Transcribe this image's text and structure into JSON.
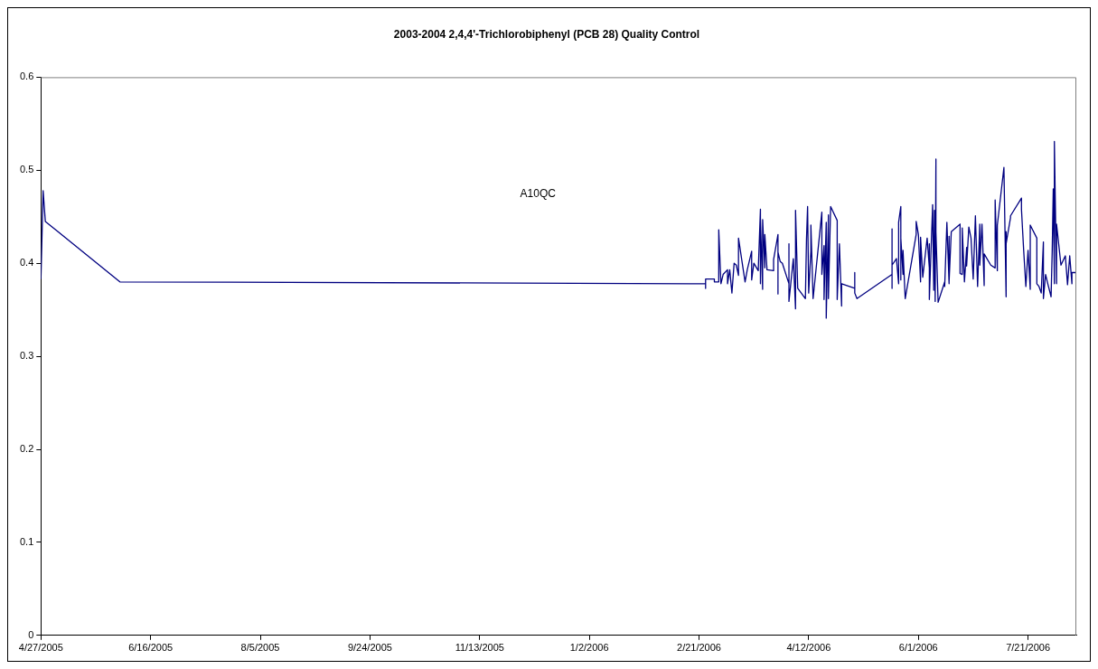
{
  "chart_data": {
    "type": "line",
    "title": "2003-2004 2,4,4'-Trichlorobiphenyl (PCB 28) Quality Control",
    "annotations": [
      "A10QC"
    ],
    "x": [
      "2005-04-27",
      "2005-04-28",
      "2005-04-29",
      "2005-06-02",
      "2006-02-24",
      "2006-02-24",
      "2006-02-24",
      "2006-02-28",
      "2006-02-28",
      "2006-03-02",
      "2006-03-02",
      "2006-03-03",
      "2006-03-04",
      "2006-03-06",
      "2006-03-06",
      "2006-03-07",
      "2006-03-08",
      "2006-03-09",
      "2006-03-10",
      "2006-03-11",
      "2006-03-11",
      "2006-03-14",
      "2006-03-15",
      "2006-03-17",
      "2006-03-17",
      "2006-03-18",
      "2006-03-20",
      "2006-03-21",
      "2006-03-21",
      "2006-03-21",
      "2006-03-22",
      "2006-03-22",
      "2006-03-23",
      "2006-03-23",
      "2006-03-24",
      "2006-03-27",
      "2006-03-27",
      "2006-03-29",
      "2006-03-29",
      "2006-03-29",
      "2006-03-29",
      "2006-03-30",
      "2006-03-31",
      "2006-04-03",
      "2006-04-03",
      "2006-04-03",
      "2006-04-05",
      "2006-04-06",
      "2006-04-06",
      "2006-04-07",
      "2006-04-10T12:00",
      "2006-04-11",
      "2006-04-11T12:00",
      "2006-04-12",
      "2006-04-13",
      "2006-04-13",
      "2006-04-14",
      "2006-04-18",
      "2006-04-18",
      "2006-04-19",
      "2006-04-19",
      "2006-04-20",
      "2006-04-20",
      "2006-04-21",
      "2006-04-21",
      "2006-04-22",
      "2006-04-25",
      "2006-04-25",
      "2006-04-26",
      "2006-04-27",
      "2006-04-27",
      "2006-05-03",
      "2006-05-03",
      "2006-05-03",
      "2006-05-04",
      "2006-05-20",
      "2006-05-20",
      "2006-05-20",
      "2006-05-20",
      "2006-05-22",
      "2006-05-23",
      "2006-05-23",
      "2006-05-24",
      "2006-05-24",
      "2006-05-24",
      "2006-05-25",
      "2006-05-25",
      "2006-05-26",
      "2006-05-31",
      "2006-05-31",
      "2006-06-01",
      "2006-06-02",
      "2006-06-02",
      "2006-06-03",
      "2006-06-05",
      "2006-06-06",
      "2006-06-06",
      "2006-06-06",
      "2006-06-07T12:00",
      "2006-06-08",
      "2006-06-08T08:00",
      "2006-06-08T16:00",
      "2006-06-09",
      "2006-06-09",
      "2006-06-10",
      "2006-06-13",
      "2006-06-13",
      "2006-06-14",
      "2006-06-15",
      "2006-06-15",
      "2006-06-15",
      "2006-06-16",
      "2006-06-20",
      "2006-06-20",
      "2006-06-21",
      "2006-06-21",
      "2006-06-22",
      "2006-06-23",
      "2006-06-23",
      "2006-06-24",
      "2006-06-25",
      "2006-06-26",
      "2006-06-27",
      "2006-06-28",
      "2006-06-29",
      "2006-06-29",
      "2006-06-30",
      "2006-07-01",
      "2006-07-01",
      "2006-07-04",
      "2006-07-06",
      "2006-07-06",
      "2006-07-07",
      "2006-07-07",
      "2006-07-10",
      "2006-07-11",
      "2006-07-11",
      "2006-07-11",
      "2006-07-13",
      "2006-07-13",
      "2006-07-18",
      "2006-07-18",
      "2006-07-19",
      "2006-07-20",
      "2006-07-21",
      "2006-07-22",
      "2006-07-22",
      "2006-07-25",
      "2006-07-25",
      "2006-07-26",
      "2006-07-27",
      "2006-07-28",
      "2006-07-28",
      "2006-07-29",
      "2006-07-30",
      "2006-07-31T12:00",
      "2006-08-01",
      "2006-08-01T12:00",
      "2006-08-02",
      "2006-08-02",
      "2006-08-03",
      "2006-08-03",
      "2006-08-05",
      "2006-08-07",
      "2006-08-08",
      "2006-08-09",
      "2006-08-10",
      "2006-08-10",
      "2006-08-12"
    ],
    "series": [
      {
        "color": "#000080",
        "values": [
          0.383,
          0.478,
          0.445,
          0.38,
          0.378,
          0.373,
          0.383,
          0.383,
          0.38,
          0.38,
          0.436,
          0.378,
          0.388,
          0.393,
          0.378,
          0.393,
          0.368,
          0.4,
          0.398,
          0.387,
          0.427,
          0.38,
          0.393,
          0.413,
          0.382,
          0.4,
          0.392,
          0.458,
          0.378,
          0.448,
          0.372,
          0.447,
          0.395,
          0.431,
          0.393,
          0.392,
          0.404,
          0.431,
          0.4,
          0.367,
          0.412,
          0.402,
          0.4,
          0.378,
          0.421,
          0.359,
          0.405,
          0.351,
          0.457,
          0.373,
          0.362,
          0.426,
          0.461,
          0.368,
          0.413,
          0.441,
          0.362,
          0.455,
          0.388,
          0.419,
          0.361,
          0.444,
          0.341,
          0.452,
          0.362,
          0.461,
          0.446,
          0.361,
          0.421,
          0.354,
          0.378,
          0.373,
          0.39,
          0.368,
          0.362,
          0.388,
          0.437,
          0.373,
          0.398,
          0.405,
          0.378,
          0.444,
          0.461,
          0.382,
          0.427,
          0.388,
          0.414,
          0.362,
          0.431,
          0.445,
          0.431,
          0.38,
          0.428,
          0.385,
          0.427,
          0.395,
          0.421,
          0.361,
          0.463,
          0.371,
          0.457,
          0.359,
          0.512,
          0.434,
          0.358,
          0.38,
          0.375,
          0.444,
          0.378,
          0.429,
          0.38,
          0.434,
          0.442,
          0.389,
          0.388,
          0.438,
          0.38,
          0.417,
          0.397,
          0.439,
          0.427,
          0.383,
          0.451,
          0.375,
          0.442,
          0.398,
          0.442,
          0.376,
          0.41,
          0.398,
          0.395,
          0.468,
          0.392,
          0.441,
          0.503,
          0.364,
          0.434,
          0.421,
          0.449,
          0.451,
          0.47,
          0.458,
          0.414,
          0.375,
          0.414,
          0.372,
          0.441,
          0.427,
          0.378,
          0.375,
          0.368,
          0.423,
          0.362,
          0.388,
          0.378,
          0.364,
          0.412,
          0.48,
          0.378,
          0.531,
          0.378,
          0.442,
          0.398,
          0.408,
          0.377,
          0.408,
          0.378,
          0.39,
          0.39
        ]
      }
    ],
    "xlim": [
      "2005-04-27",
      "2006-08-12"
    ],
    "xticks": [
      {
        "value": "2005-04-27",
        "label": "4/27/2005"
      },
      {
        "value": "2005-06-16",
        "label": "6/16/2005"
      },
      {
        "value": "2005-08-05",
        "label": "8/5/2005"
      },
      {
        "value": "2005-09-24",
        "label": "9/24/2005"
      },
      {
        "value": "2005-11-13",
        "label": "11/13/2005"
      },
      {
        "value": "2006-01-02",
        "label": "1/2/2006"
      },
      {
        "value": "2006-02-21",
        "label": "2/21/2006"
      },
      {
        "value": "2006-04-12",
        "label": "4/12/2006"
      },
      {
        "value": "2006-06-01",
        "label": "6/1/2006"
      },
      {
        "value": "2006-07-21",
        "label": "7/21/2006"
      }
    ],
    "ylim": [
      0,
      0.6
    ],
    "yticks": [
      0,
      0.1,
      0.2,
      0.3,
      0.4,
      0.5,
      0.6
    ],
    "grid": false,
    "legend": false,
    "marker": "none",
    "line_style": "solid"
  }
}
